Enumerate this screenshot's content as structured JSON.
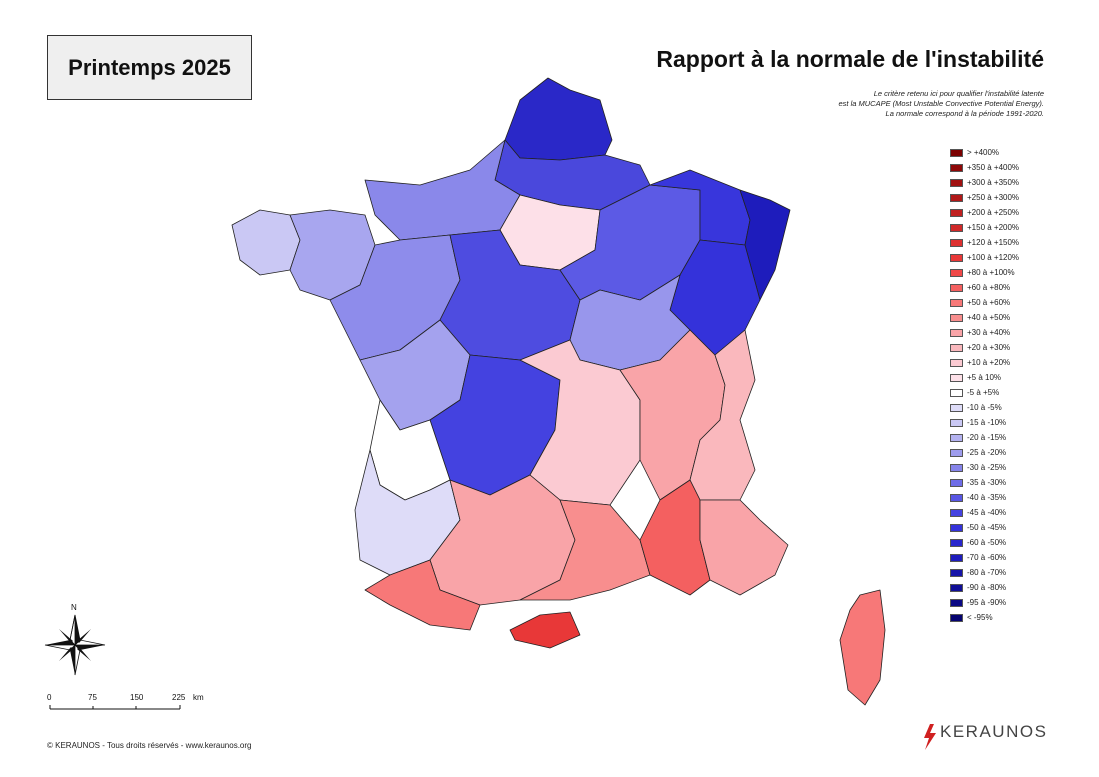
{
  "header": {
    "season": "Printemps 2025",
    "title": "Rapport à la normale de l'instabilité",
    "note_lines": [
      "Le critère retenu ici pour qualifier l'instabilité latente",
      "est la MUCAPE (Most Unstable Convective Potential Energy).",
      "La normale correspond à la période 1991-2020."
    ]
  },
  "legend": [
    {
      "label": "> +400%",
      "color": "#7a0000"
    },
    {
      "label": "+350 à +400%",
      "color": "#8e0808"
    },
    {
      "label": "+300 à +350%",
      "color": "#a01010"
    },
    {
      "label": "+250 à +300%",
      "color": "#b01818"
    },
    {
      "label": "+200 à +250%",
      "color": "#c02020"
    },
    {
      "label": "+150 à +200%",
      "color": "#cf2828"
    },
    {
      "label": "+120 à +150%",
      "color": "#dd3030"
    },
    {
      "label": "+100 à +120%",
      "color": "#e83838"
    },
    {
      "label": "+80 à +100%",
      "color": "#f04848"
    },
    {
      "label": "+60 à +80%",
      "color": "#f46060"
    },
    {
      "label": "+50 à +60%",
      "color": "#f77878"
    },
    {
      "label": "+40 à +50%",
      "color": "#f88e8e"
    },
    {
      "label": "+30 à +40%",
      "color": "#f9a4a8"
    },
    {
      "label": "+20 à +30%",
      "color": "#fab8bd"
    },
    {
      "label": "+10 à +20%",
      "color": "#fbcad2"
    },
    {
      "label": "+5 à 10%",
      "color": "#fde0e8"
    },
    {
      "label": "-5 à +5%",
      "color": "#ffffff"
    },
    {
      "label": "-10 à -5%",
      "color": "#dedcf8"
    },
    {
      "label": "-15 à -10%",
      "color": "#cac8f4"
    },
    {
      "label": "-20 à -15%",
      "color": "#b4b2f0"
    },
    {
      "label": "-25 à -20%",
      "color": "#9e9ced"
    },
    {
      "label": "-30 à -25%",
      "color": "#8684ea"
    },
    {
      "label": "-35 à -30%",
      "color": "#6e6ce7"
    },
    {
      "label": "-40 à -35%",
      "color": "#5856e4"
    },
    {
      "label": "-45 à -40%",
      "color": "#4442e0"
    },
    {
      "label": "-50 à -45%",
      "color": "#3432da"
    },
    {
      "label": "-60 à -50%",
      "color": "#2826cc"
    },
    {
      "label": "-70 à -60%",
      "color": "#1e1cbc"
    },
    {
      "label": "-80 à -70%",
      "color": "#1614a8"
    },
    {
      "label": "-90 à -80%",
      "color": "#100e96"
    },
    {
      "label": "-95 à -90%",
      "color": "#0a0884"
    },
    {
      "label": "< -95%",
      "color": "#050370"
    }
  ],
  "map_zones": [
    {
      "id": "nord",
      "value_color": "#2a28c8"
    },
    {
      "id": "picardie",
      "value_color": "#4a48dc"
    },
    {
      "id": "normandie",
      "value_color": "#8a88ea"
    },
    {
      "id": "bretagne",
      "value_color": "#a8a6ef"
    },
    {
      "id": "bretagne-west",
      "value_color": "#cac8f4"
    },
    {
      "id": "pays-de-la-loire",
      "value_color": "#8e8ceb"
    },
    {
      "id": "centre",
      "value_color": "#4e4ce0"
    },
    {
      "id": "ile-de-france",
      "value_color": "#fde0e8"
    },
    {
      "id": "champagne",
      "value_color": "#5c5ae5"
    },
    {
      "id": "lorraine",
      "value_color": "#3836dc"
    },
    {
      "id": "alsace",
      "value_color": "#1e1cbc"
    },
    {
      "id": "franche-comte",
      "value_color": "#3432da"
    },
    {
      "id": "bourgogne",
      "value_color": "#9896ec"
    },
    {
      "id": "limousin",
      "value_color": "#4442e0"
    },
    {
      "id": "poitou",
      "value_color": "#a4a2ee"
    },
    {
      "id": "aquitaine-north",
      "value_color": "#ffffff"
    },
    {
      "id": "aquitaine-south",
      "value_color": "#dedcf8"
    },
    {
      "id": "auvergne",
      "value_color": "#fbcad2"
    },
    {
      "id": "rhone-alpes",
      "value_color": "#f9a4a8"
    },
    {
      "id": "alpes",
      "value_color": "#fab8bd"
    },
    {
      "id": "midi-pyrenees",
      "value_color": "#f9a4a8"
    },
    {
      "id": "pyrenees",
      "value_color": "#f77878"
    },
    {
      "id": "languedoc",
      "value_color": "#f88e8e"
    },
    {
      "id": "roussillon",
      "value_color": "#e83838"
    },
    {
      "id": "provence",
      "value_color": "#f46060"
    },
    {
      "id": "cote-azur",
      "value_color": "#f9a4a8"
    },
    {
      "id": "corse",
      "value_color": "#f77878"
    }
  ],
  "compass": {
    "north_label": "N"
  },
  "scale": {
    "ticks": [
      "0",
      "75",
      "150",
      "225"
    ],
    "unit": "km"
  },
  "footer": {
    "copyright": "© KERAUNOS - Tous droits réservés - www.keraunos.org",
    "logo_text": "KERAUNOS"
  }
}
